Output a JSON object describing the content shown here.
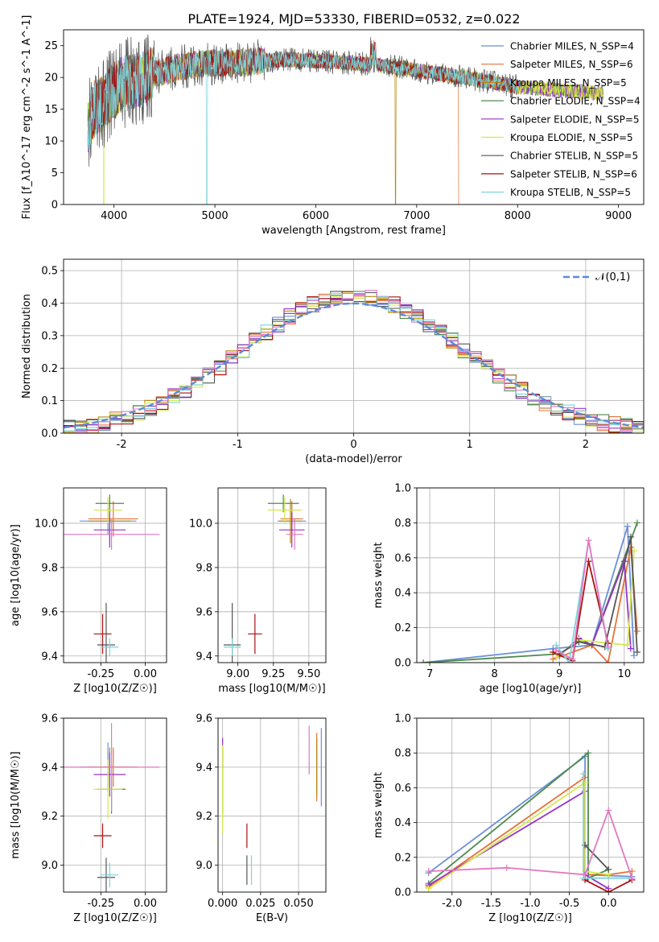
{
  "chart_data": [
    {
      "type": "line",
      "title": "PLATE=1924, MJD=53330, FIBERID=0532, z=0.022",
      "xlabel": "wavelength [Angstrom, rest frame]",
      "ylabel": "Flux [f_λ10^-17 erg cm^-2 s^-1 A^-1]",
      "xlim": [
        3500,
        9250
      ],
      "ylim": [
        0,
        27.5
      ],
      "xticks": [
        4000,
        5000,
        6000,
        7000,
        8000,
        9000
      ],
      "yticks": [
        0,
        5,
        10,
        15,
        20,
        25
      ],
      "legend": "upper-right",
      "series": [
        {
          "name": "Chabrier MILES, N_SSP=4",
          "color": "#6a8fd8",
          "drop_at": null
        },
        {
          "name": "Salpeter MILES, N_SSP=6",
          "color": "#e8713a",
          "drop_at": 7420
        },
        {
          "name": "Kroupa MILES, N_SSP=5",
          "color": "#b8860b",
          "drop_at": 6790
        },
        {
          "name": "Chabrier ELODIE, N_SSP=4",
          "color": "#4d8a4d",
          "drop_at": null
        },
        {
          "name": "Salpeter ELODIE, N_SSP=5",
          "color": "#9932cc",
          "drop_at": null
        },
        {
          "name": "Kroupa ELODIE, N_SSP=5",
          "color": "#d4e84a",
          "drop_at": 3900
        },
        {
          "name": "Chabrier STELIB, N_SSP=5",
          "color": "#555555",
          "drop_at": null
        },
        {
          "name": "Salpeter STELIB, N_SSP=6",
          "color": "#aa1111",
          "drop_at": null
        },
        {
          "name": "Kroupa STELIB, N_SSP=5",
          "color": "#7dd4d8",
          "drop_at": 4920
        }
      ],
      "continuum": {
        "x": [
          3740,
          3800,
          3900,
          4000,
          4100,
          4200,
          4300,
          4400,
          4600,
          4800,
          5000,
          5200,
          5400,
          5600,
          5800,
          6000,
          6200,
          6400,
          6600,
          6800,
          7000,
          7200,
          7400,
          7600,
          7800,
          8000,
          8200,
          8400,
          8600,
          8800
        ],
        "y": [
          12,
          15,
          16,
          18,
          19,
          19.5,
          19.8,
          20.5,
          21.5,
          22,
          22.3,
          22.2,
          22.5,
          22.7,
          22.8,
          22.6,
          22.4,
          22.2,
          22,
          21.6,
          21.1,
          20.6,
          20.2,
          19.6,
          19.1,
          18.5,
          18.3,
          18,
          17.8,
          17.5
        ]
      }
    },
    {
      "type": "bar",
      "xlabel": "(data-model)/error",
      "ylabel": "Normed distribution",
      "xlim": [
        -2.5,
        2.5
      ],
      "ylim": [
        0,
        0.535
      ],
      "xticks": [
        -2,
        -1,
        0,
        1,
        2
      ],
      "yticks": [
        0.0,
        0.1,
        0.2,
        0.3,
        0.4,
        0.5
      ],
      "bin_width": 0.1,
      "legend": "upper-right",
      "reference": {
        "name": "𝒩(0,1)",
        "color": "#5b8ad6",
        "mean": 0,
        "sigma": 1
      },
      "series_colors": [
        "#6a8fd8",
        "#e8713a",
        "#b8860b",
        "#4d8a4d",
        "#9932cc",
        "#d4e84a",
        "#555555",
        "#aa1111",
        "#7dd4d8",
        "#e377c2"
      ]
    },
    {
      "type": "scatter",
      "panel": "age-vs-Z",
      "xlabel": "Z [log10(Z/Z☉)]",
      "ylabel": "age [log10(age/yr)]",
      "xlim": [
        -0.46,
        0.12
      ],
      "ylim": [
        9.37,
        10.16
      ],
      "xticks": [
        -0.25,
        0.0
      ],
      "yticks": [
        9.4,
        9.6,
        9.8,
        10.0
      ],
      "points": [
        {
          "color": "#6a8fd8",
          "x": -0.21,
          "y": 10.01,
          "xe": 0.16,
          "ye": 0.06
        },
        {
          "color": "#e8713a",
          "x": -0.18,
          "y": 10.02,
          "xe": 0.14,
          "ye": 0.08
        },
        {
          "color": "#b8860b",
          "x": -0.2,
          "y": 10.01,
          "xe": 0.12,
          "ye": 0.1
        },
        {
          "color": "#4d8a4d",
          "x": -0.2,
          "y": 10.09,
          "xe": 0.08,
          "ye": 0.04
        },
        {
          "color": "#9932cc",
          "x": -0.2,
          "y": 9.97,
          "xe": 0.09,
          "ye": 0.08
        },
        {
          "color": "#d4e84a",
          "x": -0.21,
          "y": 10.06,
          "xe": 0.08,
          "ye": 0.06
        },
        {
          "color": "#555555",
          "x": -0.22,
          "y": 9.45,
          "xe": 0.05,
          "ye": 0.19
        },
        {
          "color": "#aa1111",
          "x": -0.24,
          "y": 9.5,
          "xe": 0.05,
          "ye": 0.09
        },
        {
          "color": "#7dd4d8",
          "x": -0.2,
          "y": 9.44,
          "xe": 0.05,
          "ye": 0.04
        },
        {
          "color": "#e377c2",
          "x": -0.19,
          "y": 9.95,
          "xe": 0.27,
          "ye": 0.07
        }
      ]
    },
    {
      "type": "scatter",
      "panel": "age-vs-mass",
      "xlabel": "mass [log10(M/M☉)]",
      "xlim": [
        8.86,
        9.62
      ],
      "ylim": [
        9.37,
        10.16
      ],
      "xticks": [
        9.0,
        9.25,
        9.5
      ],
      "yticks": [
        9.4,
        9.6,
        9.8,
        10.0
      ],
      "points": [
        {
          "color": "#6a8fd8",
          "x": 9.38,
          "y": 10.01,
          "xe": 0.1,
          "ye": 0.06
        },
        {
          "color": "#e8713a",
          "x": 9.38,
          "y": 10.02,
          "xe": 0.08,
          "ye": 0.08
        },
        {
          "color": "#b8860b",
          "x": 9.37,
          "y": 10.01,
          "xe": 0.08,
          "ye": 0.1
        },
        {
          "color": "#4d8a4d",
          "x": 9.32,
          "y": 10.09,
          "xe": 0.11,
          "ye": 0.04
        },
        {
          "color": "#9932cc",
          "x": 9.38,
          "y": 9.97,
          "xe": 0.09,
          "ye": 0.08
        },
        {
          "color": "#d4e84a",
          "x": 9.33,
          "y": 10.06,
          "xe": 0.12,
          "ye": 0.06
        },
        {
          "color": "#555555",
          "x": 8.96,
          "y": 9.45,
          "xe": 0.06,
          "ye": 0.19
        },
        {
          "color": "#aa1111",
          "x": 9.12,
          "y": 9.5,
          "xe": 0.05,
          "ye": 0.09
        },
        {
          "color": "#7dd4d8",
          "x": 8.96,
          "y": 9.44,
          "xe": 0.06,
          "ye": 0.04
        },
        {
          "color": "#e377c2",
          "x": 9.4,
          "y": 9.95,
          "xe": 0.06,
          "ye": 0.07
        }
      ]
    },
    {
      "type": "line",
      "panel": "mass-weight-vs-age",
      "xlabel": "age [log10(age/yr)]",
      "ylabel": "mass weight",
      "xlim": [
        6.8,
        10.3
      ],
      "ylim": [
        0,
        1.0
      ],
      "xticks": [
        7,
        8,
        9,
        10
      ],
      "yticks": [
        0.0,
        0.2,
        0.4,
        0.6,
        0.8,
        1.0
      ],
      "series": [
        {
          "color": "#6a8fd8",
          "x": [
            6.9,
            8.9,
            9.5,
            10.05,
            10.15
          ],
          "y": [
            0.0,
            0.08,
            0.1,
            0.78,
            0.04
          ]
        },
        {
          "color": "#e8713a",
          "x": [
            8.9,
            9.5,
            9.75,
            10.1,
            10.2
          ],
          "y": [
            0.02,
            0.1,
            0.0,
            0.66,
            0.18
          ]
        },
        {
          "color": "#4d8a4d",
          "x": [
            6.9,
            9.0,
            9.3,
            9.5,
            10.2
          ],
          "y": [
            0.0,
            0.05,
            0.12,
            0.1,
            0.8
          ]
        },
        {
          "color": "#9932cc",
          "x": [
            9.0,
            9.3,
            9.5,
            10.0,
            10.1
          ],
          "y": [
            0.04,
            0.14,
            0.1,
            0.58,
            0.08
          ]
        },
        {
          "color": "#d4e84a",
          "x": [
            8.95,
            9.3,
            10.05,
            10.15
          ],
          "y": [
            0.03,
            0.13,
            0.1,
            0.64
          ]
        },
        {
          "color": "#555555",
          "x": [
            9.0,
            9.3,
            9.7,
            10.1,
            10.2
          ],
          "y": [
            0.05,
            0.12,
            0.09,
            0.72,
            0.06
          ]
        },
        {
          "color": "#aa1111",
          "x": [
            8.9,
            9.2,
            9.45,
            9.75
          ],
          "y": [
            0.06,
            0.01,
            0.58,
            0.11
          ]
        },
        {
          "color": "#7dd4d8",
          "x": [
            8.95,
            9.15,
            9.45,
            9.75
          ],
          "y": [
            0.1,
            0.0,
            0.7,
            0.08
          ]
        },
        {
          "color": "#e377c2",
          "x": [
            8.95,
            9.2,
            9.45,
            9.75
          ],
          "y": [
            0.07,
            0.02,
            0.7,
            0.09
          ]
        }
      ]
    },
    {
      "type": "scatter",
      "panel": "mass-vs-Z",
      "xlabel": "Z [log10(Z/Z☉)]",
      "ylabel": "mass [log10(M/M☉)]",
      "xlim": [
        -0.46,
        0.12
      ],
      "ylim": [
        8.89,
        9.6
      ],
      "xticks": [
        -0.25,
        0.0
      ],
      "yticks": [
        9.0,
        9.2,
        9.4,
        9.6
      ],
      "points": [
        {
          "color": "#6a8fd8",
          "x": -0.21,
          "y": 9.4,
          "xe": 0.16,
          "ye": 0.1
        },
        {
          "color": "#e8713a",
          "x": -0.18,
          "y": 9.4,
          "xe": 0.14,
          "ye": 0.08
        },
        {
          "color": "#b8860b",
          "x": -0.2,
          "y": 9.4,
          "xe": 0.12,
          "ye": 0.08
        },
        {
          "color": "#4d8a4d",
          "x": -0.19,
          "y": 9.31,
          "xe": 0.08,
          "ye": 0.1
        },
        {
          "color": "#9932cc",
          "x": -0.2,
          "y": 9.37,
          "xe": 0.09,
          "ye": 0.09
        },
        {
          "color": "#d4e84a",
          "x": -0.21,
          "y": 9.31,
          "xe": 0.08,
          "ye": 0.12
        },
        {
          "color": "#555555",
          "x": -0.22,
          "y": 8.95,
          "xe": 0.05,
          "ye": 0.08
        },
        {
          "color": "#aa1111",
          "x": -0.24,
          "y": 9.12,
          "xe": 0.05,
          "ye": 0.05
        },
        {
          "color": "#7dd4d8",
          "x": -0.2,
          "y": 8.96,
          "xe": 0.05,
          "ye": 0.05
        },
        {
          "color": "#e377c2",
          "x": -0.19,
          "y": 9.4,
          "xe": 0.27,
          "ye": 0.18
        }
      ]
    },
    {
      "type": "scatter",
      "panel": "mass-vs-EBV",
      "xlabel": "E(B-V)",
      "xlim": [
        -0.003,
        0.068
      ],
      "ylim": [
        8.89,
        9.6
      ],
      "xticks": [
        0.0,
        0.025,
        0.05
      ],
      "yticks": [
        9.0,
        9.2,
        9.4,
        9.6
      ],
      "points": [
        {
          "color": "#6a8fd8",
          "x": 0.065,
          "y": 9.4,
          "ye": 0.16
        },
        {
          "color": "#e8713a",
          "x": 0.062,
          "y": 9.4,
          "ye": 0.14
        },
        {
          "color": "#b8860b",
          "x": 0.062,
          "y": 9.4,
          "ye": 0.12
        },
        {
          "color": "#4d8a4d",
          "x": 0.0,
          "y": 9.31,
          "ye": 0.1
        },
        {
          "color": "#9932cc",
          "x": 0.0,
          "y": 9.46,
          "ye": 0.06
        },
        {
          "color": "#d4e84a",
          "x": 0.0,
          "y": 9.31,
          "ye": 0.18
        },
        {
          "color": "#555555",
          "x": 0.016,
          "y": 8.98,
          "ye": 0.06
        },
        {
          "color": "#aa1111",
          "x": 0.016,
          "y": 9.12,
          "ye": 0.05
        },
        {
          "color": "#7dd4d8",
          "x": 0.019,
          "y": 8.98,
          "ye": 0.06
        },
        {
          "color": "#e377c2",
          "x": 0.057,
          "y": 9.47,
          "ye": 0.1
        }
      ]
    },
    {
      "type": "line",
      "panel": "mass-weight-vs-Z",
      "xlabel": "Z [log10(Z/Z☉)]",
      "ylabel": "mass weight",
      "xlim": [
        -2.45,
        0.45
      ],
      "ylim": [
        0,
        1.0
      ],
      "xticks": [
        -2.0,
        -1.5,
        -1.0,
        -0.5,
        0.0
      ],
      "yticks": [
        0.0,
        0.2,
        0.4,
        0.6,
        0.8,
        1.0
      ],
      "series": [
        {
          "color": "#6a8fd8",
          "x": [
            -2.3,
            -0.3,
            -0.3,
            0.3
          ],
          "y": [
            0.11,
            0.78,
            0.1,
            0.09
          ]
        },
        {
          "color": "#e8713a",
          "x": [
            -2.3,
            -0.3,
            -0.3,
            0.0,
            0.3
          ],
          "y": [
            0.03,
            0.66,
            0.1,
            0.1,
            0.12
          ]
        },
        {
          "color": "#4d8a4d",
          "x": [
            -2.3,
            -0.26,
            -0.26,
            0.0
          ],
          "y": [
            0.05,
            0.8,
            0.08,
            0.13
          ]
        },
        {
          "color": "#9932cc",
          "x": [
            -2.3,
            -0.3,
            -0.3,
            0.0
          ],
          "y": [
            0.04,
            0.58,
            0.1,
            0.02
          ]
        },
        {
          "color": "#d4e84a",
          "x": [
            -2.3,
            -0.3,
            -0.3,
            0.0
          ],
          "y": [
            0.02,
            0.63,
            0.12,
            0.1
          ]
        },
        {
          "color": "#555555",
          "x": [
            -0.3,
            0.0
          ],
          "y": [
            0.27,
            0.13
          ]
        },
        {
          "color": "#aa1111",
          "x": [
            -0.3,
            0.0,
            0.3
          ],
          "y": [
            0.07,
            0.0,
            0.07
          ]
        },
        {
          "color": "#7dd4d8",
          "x": [
            -0.32,
            -0.32,
            0.3
          ],
          "y": [
            0.68,
            0.08,
            0.08
          ]
        },
        {
          "color": "#e377c2",
          "x": [
            -2.3,
            -1.3,
            -0.3,
            0.0,
            0.3
          ],
          "y": [
            0.12,
            0.14,
            0.1,
            0.47,
            0.08
          ]
        }
      ]
    }
  ]
}
